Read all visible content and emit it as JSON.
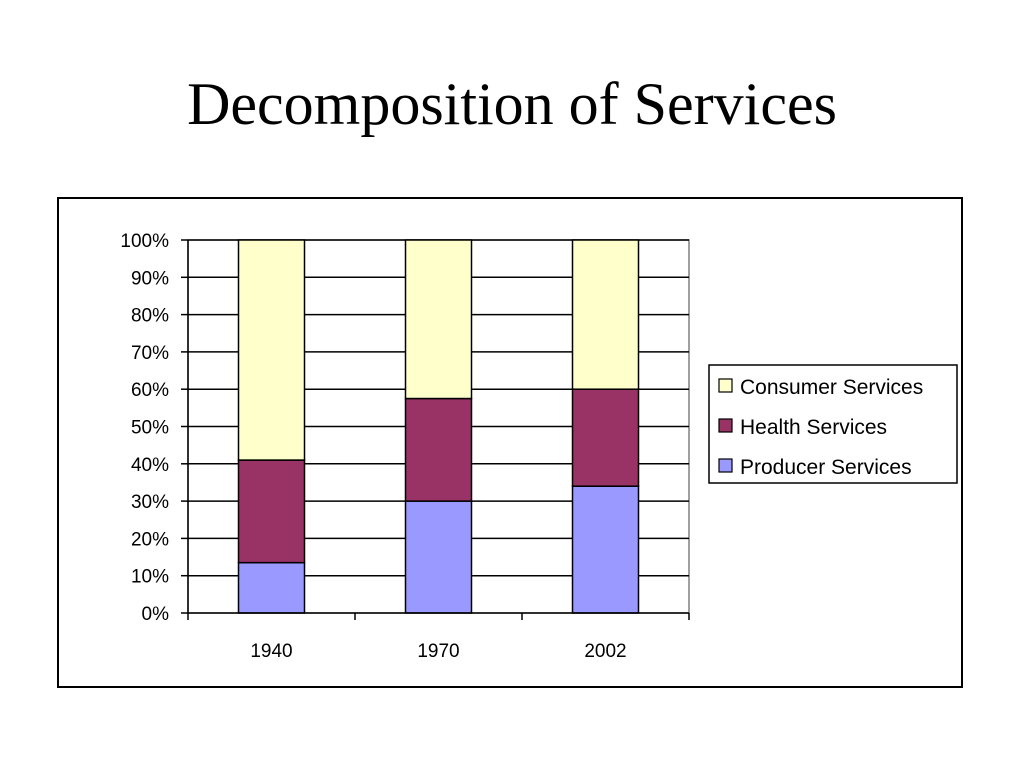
{
  "slide": {
    "title": "Decomposition of Services"
  },
  "chart_data": {
    "type": "bar",
    "stacked": "percent",
    "categories": [
      "1940",
      "1970",
      "2002"
    ],
    "series": [
      {
        "name": "Producer Services",
        "values": [
          13.5,
          30,
          34
        ],
        "color": "#9999FF"
      },
      {
        "name": "Health Services",
        "values": [
          27.5,
          27.5,
          26
        ],
        "color": "#993366"
      },
      {
        "name": "Consumer Services",
        "values": [
          59,
          42.5,
          40
        ],
        "color": "#FFFFCC"
      }
    ],
    "y_ticks": [
      "0%",
      "10%",
      "20%",
      "30%",
      "40%",
      "50%",
      "60%",
      "70%",
      "80%",
      "90%",
      "100%"
    ],
    "ylim": [
      0,
      100
    ],
    "grid": "horizontal",
    "legend_position": "right",
    "legend_order": [
      "Consumer Services",
      "Health Services",
      "Producer Services"
    ],
    "title": "Decomposition of Services",
    "xlabel": "",
    "ylabel": ""
  }
}
